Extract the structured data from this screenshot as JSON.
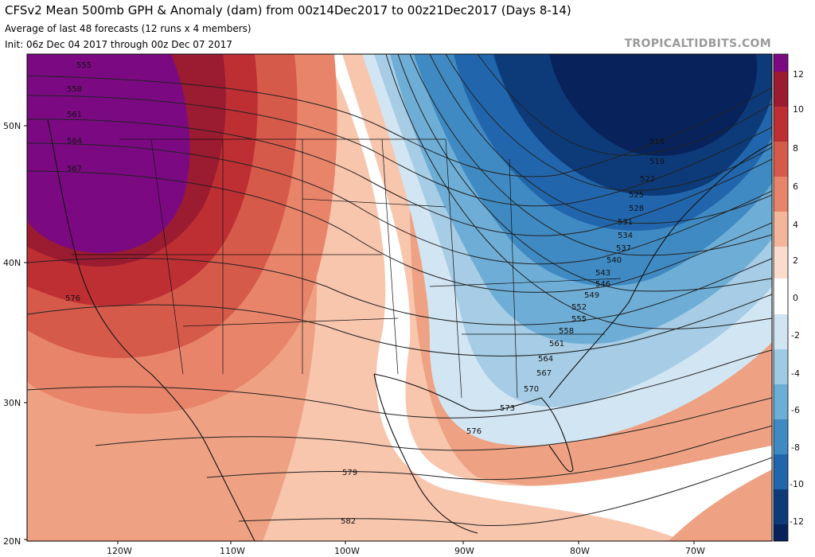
{
  "header": {
    "title": "CFSv2 Mean 500mb GPH & Anomaly (dam) from 00z14Dec2017 to 00z21Dec2017 (Days 8-14)",
    "subtitle_1": "Average of last 48 forecasts (12 runs x 4 members)",
    "subtitle_2": "Init: 06z Dec 04 2017 through 00z Dec 07 2017"
  },
  "watermark": "TROPICALTIDBITS.COM",
  "map": {
    "lat_labels": [
      "50N",
      "40N",
      "30N",
      "20N"
    ],
    "lon_labels": [
      "120W",
      "110W",
      "100W",
      "90W",
      "80W",
      "70W"
    ],
    "colorbar_ticks": [
      "12",
      "10",
      "8",
      "6",
      "4",
      "2",
      "0",
      "-2",
      "-4",
      "-6",
      "-8",
      "-10",
      "-12"
    ],
    "contour_labels": [
      "555",
      "558",
      "561",
      "564",
      "567",
      "576",
      "516",
      "519",
      "522",
      "525",
      "528",
      "531",
      "534",
      "537",
      "540",
      "543",
      "546",
      "549",
      "552",
      "555",
      "558",
      "561",
      "564",
      "567",
      "570",
      "573",
      "576",
      "579",
      "582"
    ],
    "colors": {
      "pos_12": "#7b0a82",
      "pos_10": "#9b1b30",
      "pos_8": "#be2f34",
      "pos_6": "#d65a4a",
      "pos_4": "#e8846a",
      "pos_2": "#f4b69b",
      "pos_1": "#fbdccc",
      "zero": "#ffffff",
      "neg_1": "#d0e4f2",
      "neg_2": "#9ecae3",
      "neg_4": "#6baed6",
      "neg_6": "#3f8ac2",
      "neg_8": "#2166ac",
      "neg_10": "#0d3b7a",
      "neg_12": "#08235b"
    }
  }
}
